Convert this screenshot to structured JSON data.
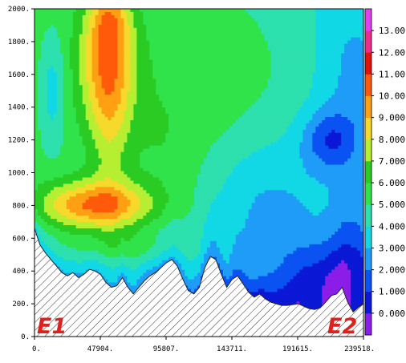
{
  "chart_data": {
    "type": "heatmap",
    "title": "",
    "xlabel": "",
    "ylabel": "",
    "x_ticks": [
      "0.",
      "47904.",
      "95807.",
      "143711.",
      "191615.",
      "239518."
    ],
    "x_tick_values": [
      0,
      47904,
      95807,
      143711,
      191615,
      239518
    ],
    "y_ticks": [
      "0.",
      "200.",
      "400.",
      "600.",
      "800.",
      "1000.",
      "1200.",
      "1400.",
      "1600.",
      "1800.",
      "2000."
    ],
    "y_tick_values": [
      0,
      200,
      400,
      600,
      800,
      1000,
      1200,
      1400,
      1600,
      1800,
      2000
    ],
    "xlim": [
      0,
      239518
    ],
    "ylim": [
      0,
      2000
    ],
    "colorbar": {
      "levels": [
        -1,
        0,
        1,
        2,
        3,
        4,
        5,
        6,
        7,
        8,
        9,
        10,
        11,
        12,
        13,
        14
      ],
      "labels": [
        "0.000",
        "1.000",
        "2.000",
        "3.000",
        "4.000",
        "5.000",
        "6.000",
        "7.000",
        "8.000",
        "9.000",
        "10.00",
        "11.00",
        "12.00",
        "13.00"
      ],
      "label_values": [
        0,
        1,
        2,
        3,
        4,
        5,
        6,
        7,
        8,
        9,
        10,
        11,
        12,
        13
      ],
      "colors": [
        "#8a1ee8",
        "#0b18d6",
        "#0a52f2",
        "#1f9cf8",
        "#11d8e4",
        "#2de0ae",
        "#31e34a",
        "#2acb22",
        "#b6ee32",
        "#f6d92a",
        "#ff9f13",
        "#ff5a0a",
        "#e0120a",
        "#ef2c8c",
        "#e040f0"
      ]
    },
    "terrain_profile": {
      "x": [
        0,
        4000,
        8000,
        12000,
        16000,
        20000,
        24000,
        28000,
        32000,
        36000,
        40000,
        44000,
        48000,
        52000,
        56000,
        60000,
        64000,
        68000,
        72000,
        76000,
        80000,
        84000,
        88000,
        92000,
        96000,
        100000,
        104000,
        108000,
        112000,
        116000,
        120000,
        124000,
        128000,
        132000,
        136000,
        140000,
        144000,
        148000,
        152000,
        156000,
        160000,
        164000,
        168000,
        172000,
        176000,
        180000,
        184000,
        188000,
        192000,
        196000,
        200000,
        204000,
        208000,
        212000,
        216000,
        220000,
        224000,
        228000,
        232000,
        236000,
        239518
      ],
      "y": [
        660,
        560,
        510,
        470,
        430,
        390,
        370,
        390,
        360,
        380,
        410,
        400,
        380,
        330,
        300,
        310,
        360,
        300,
        260,
        300,
        340,
        370,
        390,
        420,
        450,
        470,
        430,
        350,
        280,
        260,
        300,
        420,
        490,
        470,
        380,
        300,
        350,
        370,
        320,
        270,
        240,
        260,
        230,
        210,
        200,
        190,
        190,
        195,
        200,
        185,
        170,
        165,
        175,
        210,
        250,
        260,
        300,
        210,
        150,
        180,
        200
      ]
    },
    "field_components": [
      {
        "cx": 45000,
        "cy": 800,
        "rx": 42000,
        "ry": 150,
        "amp": 5.2
      },
      {
        "cx": 53000,
        "cy": 1680,
        "rx": 20000,
        "ry": 420,
        "amp": 4.5
      },
      {
        "cx": 55000,
        "cy": 1950,
        "rx": 14000,
        "ry": 200,
        "amp": 2.0
      },
      {
        "cx": 55000,
        "cy": 1200,
        "rx": 15000,
        "ry": 450,
        "amp": 1.6
      },
      {
        "cx": 65000,
        "cy": 540,
        "rx": 40000,
        "ry": 90,
        "amp": 1.2
      },
      {
        "cx": 130000,
        "cy": 1650,
        "rx": 70000,
        "ry": 500,
        "amp": 1.1
      },
      {
        "cx": 90000,
        "cy": 1150,
        "rx": 22000,
        "ry": 350,
        "amp": 0.8
      },
      {
        "cx": 120000,
        "cy": 900,
        "rx": 28000,
        "ry": 500,
        "amp": 0.6
      },
      {
        "cx": 13000,
        "cy": 1500,
        "rx": 9000,
        "ry": 330,
        "amp": -1.8
      },
      {
        "cx": 165000,
        "cy": 800,
        "rx": 50000,
        "ry": 380,
        "amp": -1.4
      },
      {
        "cx": 215000,
        "cy": 1200,
        "rx": 20000,
        "ry": 180,
        "amp": -2.6
      },
      {
        "cx": 210000,
        "cy": 380,
        "rx": 35000,
        "ry": 220,
        "amp": -2.4
      },
      {
        "cx": 232000,
        "cy": 550,
        "rx": 15000,
        "ry": 400,
        "amp": -1.5
      },
      {
        "cx": 160000,
        "cy": 200,
        "rx": 60000,
        "ry": 150,
        "amp": -1.0
      },
      {
        "cx": 230000,
        "cy": 1600,
        "rx": 25000,
        "ry": 500,
        "amp": -1.2
      }
    ],
    "field_base": {
      "value": 5.4,
      "x_gradient": -1.6,
      "low_boundary_drop": 2.4,
      "low_boundary_depth": 180
    }
  },
  "annotations": {
    "left_end": "E1",
    "right_end": "E2"
  }
}
